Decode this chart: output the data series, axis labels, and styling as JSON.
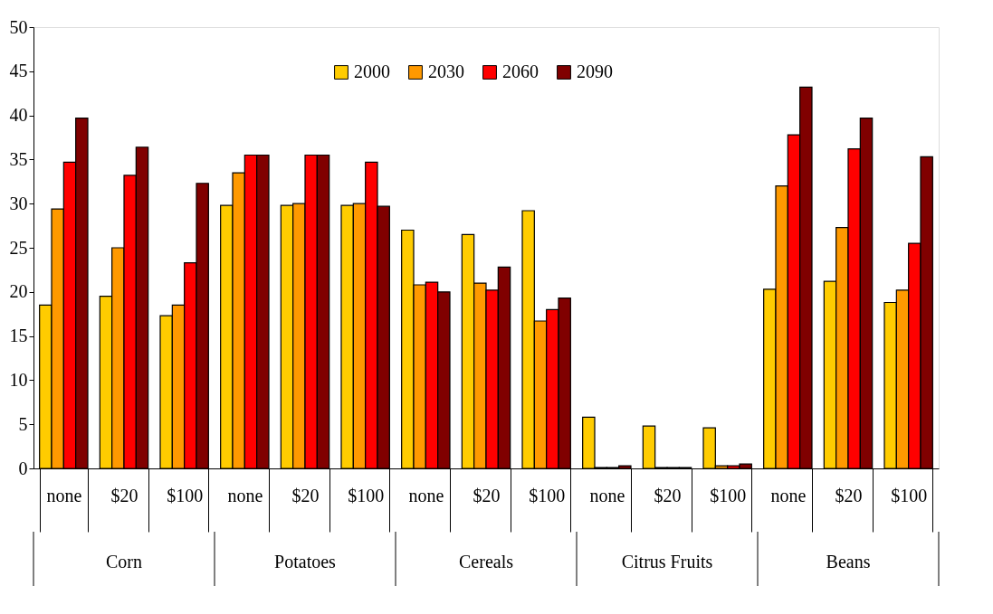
{
  "chart_data": {
    "type": "bar",
    "categories": [
      "none",
      "$20",
      "$100",
      "none",
      "$20",
      "$100",
      "none",
      "$20",
      "$100",
      "none",
      "$20",
      "$100",
      "none",
      "$20",
      "$100"
    ],
    "annotations": [
      "Corn",
      "Potatoes",
      "Cereals",
      "Citrus Fruits",
      "Beans"
    ],
    "series": [
      {
        "name": "2000",
        "color": "#ffcc00",
        "values": [
          18.5,
          19.5,
          17.3,
          29.8,
          29.8,
          29.8,
          27.0,
          26.5,
          29.2,
          5.8,
          4.8,
          4.6,
          20.3,
          21.2,
          18.8
        ]
      },
      {
        "name": "2030",
        "color": "#ff9900",
        "values": [
          29.4,
          25.0,
          18.5,
          33.5,
          30.0,
          30.0,
          20.8,
          21.0,
          16.7,
          0.1,
          0.1,
          0.3,
          32.0,
          27.3,
          20.2
        ]
      },
      {
        "name": "2060",
        "color": "#ff0000",
        "values": [
          34.7,
          33.2,
          23.3,
          35.5,
          35.5,
          34.7,
          21.1,
          20.2,
          18.0,
          0.1,
          0.1,
          0.3,
          37.8,
          36.2,
          25.5
        ]
      },
      {
        "name": "2090",
        "color": "#800000",
        "values": [
          39.7,
          36.4,
          32.3,
          35.5,
          35.5,
          29.7,
          20.0,
          22.8,
          19.3,
          0.3,
          0.1,
          0.5,
          43.2,
          39.7,
          35.3
        ]
      }
    ],
    "ylim": [
      0,
      50
    ],
    "yticks": [
      0,
      5,
      10,
      15,
      20,
      25,
      30,
      35,
      40,
      45,
      50
    ],
    "grid": false,
    "legend": "top"
  }
}
